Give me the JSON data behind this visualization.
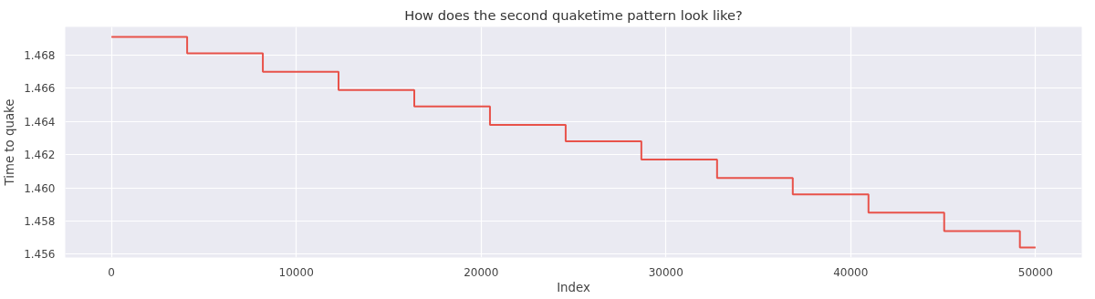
{
  "chart_data": {
    "type": "step",
    "title": "How does the second quaketime pattern look like?",
    "xlabel": "Index",
    "ylabel": "Time to quake",
    "x": [
      0,
      4096,
      8192,
      12288,
      16384,
      20480,
      24576,
      28672,
      32768,
      36864,
      40960,
      45056,
      49152,
      50000
    ],
    "series": [
      {
        "color": "#e8524a",
        "values": [
          1.4691,
          1.4681,
          1.467,
          1.4659,
          1.4649,
          1.4638,
          1.4628,
          1.4617,
          1.4606,
          1.4596,
          1.4585,
          1.4574,
          1.4564,
          1.4564
        ]
      }
    ],
    "xlim": [
      -2500,
      52500
    ],
    "ylim": [
      1.4558,
      1.4697
    ],
    "xticks": [
      0,
      10000,
      20000,
      30000,
      40000,
      50000
    ],
    "yticks": [
      {
        "value": 1.456,
        "label": "1.456"
      },
      {
        "value": 1.458,
        "label": "1.458"
      },
      {
        "value": 1.46,
        "label": "1.460"
      },
      {
        "value": 1.462,
        "label": "1.462"
      },
      {
        "value": 1.464,
        "label": "1.464"
      },
      {
        "value": 1.466,
        "label": "1.466"
      },
      {
        "value": 1.468,
        "label": "1.468"
      }
    ],
    "grid": true
  }
}
